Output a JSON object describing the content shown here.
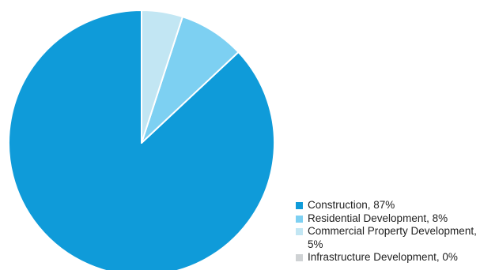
{
  "chart_data": {
    "type": "pie",
    "slices": [
      {
        "label": "Construction, 87%",
        "value": 87,
        "color": "#0f9bd9"
      },
      {
        "label": "Residential Development, 8%",
        "value": 8,
        "color": "#7dd0f2"
      },
      {
        "label": "Commercial Property Development, 5%",
        "value": 5,
        "color": "#c2e6f3"
      },
      {
        "label": "Infrastructure Development, 0%",
        "value": 0,
        "color": "#cfd2d4"
      }
    ],
    "start_angle": "12 o'clock",
    "direction": "counter-clockwise",
    "legend_position": "bottom-right"
  }
}
